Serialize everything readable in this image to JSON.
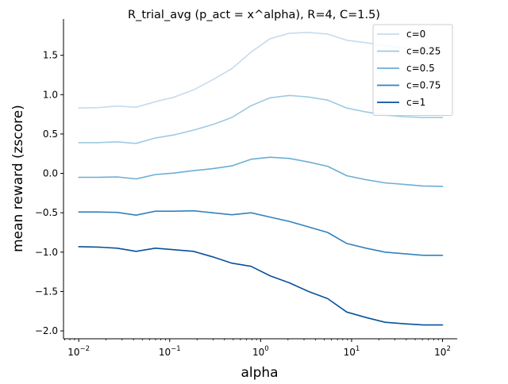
{
  "chart_data": {
    "type": "line",
    "title": "R_trial_avg (p_act = x^alpha), R=4, C=1.5)",
    "xlabel": "alpha",
    "ylabel": "mean reward (zscore)",
    "xscale": "log",
    "xlim": [
      0.0068,
      145
    ],
    "ylim": [
      -2.1,
      1.96
    ],
    "x_ticks": [
      {
        "value": 0.01,
        "base": "10",
        "exp": "−2"
      },
      {
        "value": 0.1,
        "base": "10",
        "exp": "−1"
      },
      {
        "value": 1,
        "base": "10",
        "exp": "0"
      },
      {
        "value": 10,
        "base": "10",
        "exp": "1"
      },
      {
        "value": 100,
        "base": "10",
        "exp": "2"
      }
    ],
    "y_ticks": [
      {
        "value": 1.5,
        "label": "1.5"
      },
      {
        "value": 1.0,
        "label": "1.0"
      },
      {
        "value": 0.5,
        "label": "0.5"
      },
      {
        "value": 0.0,
        "label": "0.0"
      },
      {
        "value": -0.5,
        "label": "−0.5"
      },
      {
        "value": -1.0,
        "label": "−1.0"
      },
      {
        "value": -1.5,
        "label": "−1.5"
      },
      {
        "value": -2.0,
        "label": "−2.0"
      }
    ],
    "grid": false,
    "legend_position": "top-right",
    "x": [
      0.01,
      0.0162,
      0.0264,
      0.0428,
      0.0695,
      0.113,
      0.183,
      0.298,
      0.483,
      0.785,
      1.27,
      2.07,
      3.36,
      5.46,
      8.86,
      14.4,
      23.4,
      37.9,
      61.6,
      100
    ],
    "series": [
      {
        "name": "c=0",
        "color": "#c6dbef",
        "values": [
          0.83,
          0.835,
          0.855,
          0.84,
          0.91,
          0.97,
          1.06,
          1.19,
          1.33,
          1.54,
          1.71,
          1.78,
          1.79,
          1.77,
          1.69,
          1.66,
          1.62,
          1.59,
          1.57,
          1.55
        ]
      },
      {
        "name": "c=0.25",
        "color": "#9ecae1",
        "values": [
          0.39,
          0.39,
          0.4,
          0.38,
          0.45,
          0.49,
          0.55,
          0.62,
          0.71,
          0.86,
          0.96,
          0.99,
          0.97,
          0.93,
          0.83,
          0.78,
          0.74,
          0.72,
          0.71,
          0.71
        ]
      },
      {
        "name": "c=0.5",
        "color": "#6baed6",
        "values": [
          -0.05,
          -0.05,
          -0.045,
          -0.07,
          -0.015,
          0.005,
          0.035,
          0.06,
          0.095,
          0.18,
          0.205,
          0.19,
          0.145,
          0.09,
          -0.03,
          -0.08,
          -0.12,
          -0.14,
          -0.16,
          -0.165
        ]
      },
      {
        "name": "c=0.75",
        "color": "#3182bd",
        "values": [
          -0.49,
          -0.49,
          -0.495,
          -0.53,
          -0.48,
          -0.48,
          -0.475,
          -0.5,
          -0.525,
          -0.5,
          -0.555,
          -0.61,
          -0.68,
          -0.75,
          -0.89,
          -0.95,
          -1.0,
          -1.02,
          -1.04,
          -1.04
        ]
      },
      {
        "name": "c=1",
        "color": "#08519c",
        "values": [
          -0.93,
          -0.935,
          -0.95,
          -0.99,
          -0.95,
          -0.97,
          -0.99,
          -1.06,
          -1.14,
          -1.18,
          -1.3,
          -1.39,
          -1.5,
          -1.59,
          -1.76,
          -1.83,
          -1.89,
          -1.91,
          -1.925,
          -1.925
        ]
      }
    ]
  }
}
